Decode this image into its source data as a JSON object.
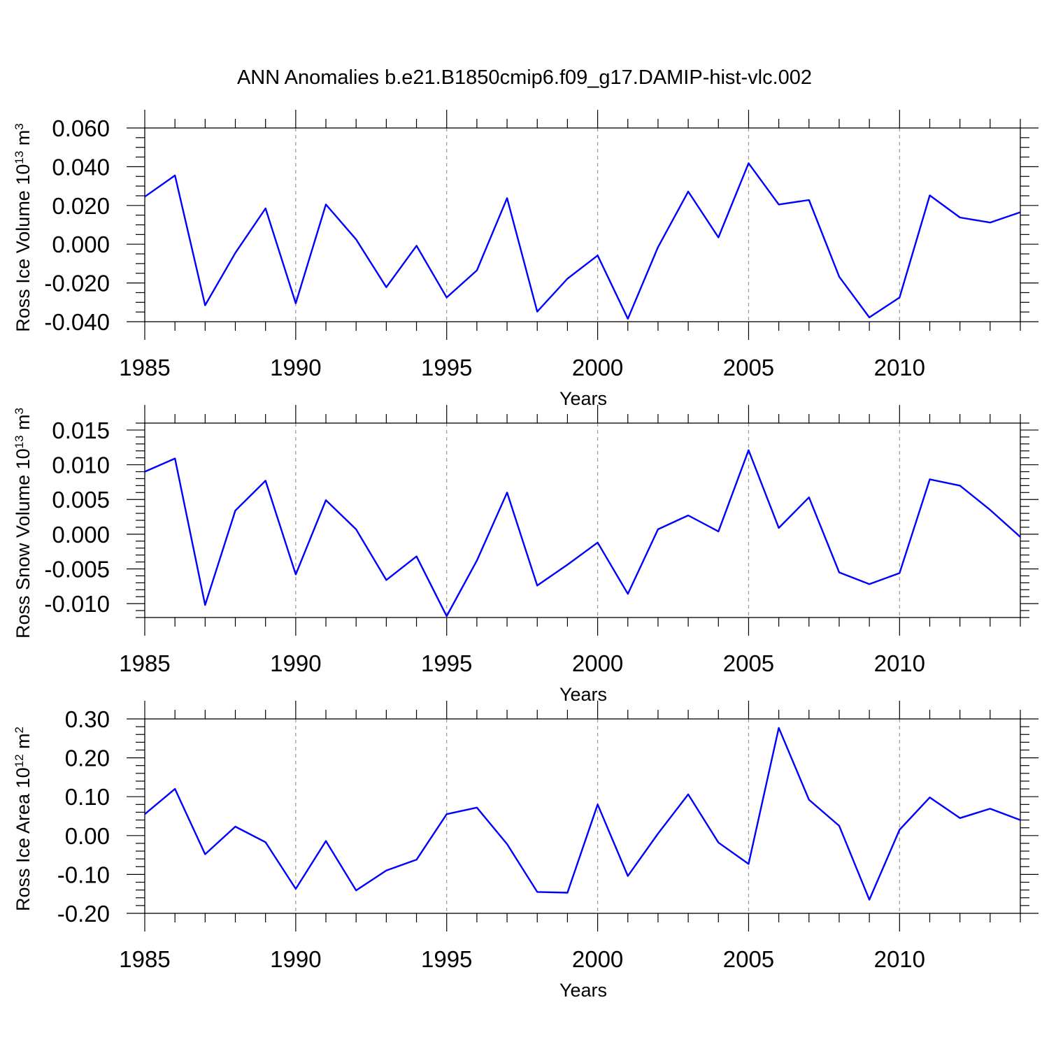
{
  "title": "ANN Anomalies b.e21.B1850cmip6.f09_g17.DAMIP-hist-vlc.002",
  "line_color": "#0000ff",
  "chart_data": [
    {
      "type": "line",
      "title": "",
      "xlabel": "Years",
      "ylabel": {
        "main": "Ross Ice Volume 10",
        "sup": "13",
        "unit": " m",
        "unit_sup": "3"
      },
      "x": [
        1985,
        1986,
        1987,
        1988,
        1989,
        1990,
        1991,
        1992,
        1993,
        1994,
        1995,
        1996,
        1997,
        1998,
        1999,
        2000,
        2001,
        2002,
        2003,
        2004,
        2005,
        2006,
        2007,
        2008,
        2009,
        2010,
        2011,
        2012,
        2013,
        2014
      ],
      "values": [
        0.0245,
        0.0355,
        -0.0315,
        -0.0045,
        0.0185,
        -0.0305,
        0.0205,
        0.0025,
        -0.0222,
        -0.0008,
        -0.0275,
        -0.0135,
        0.0238,
        -0.0348,
        -0.0178,
        -0.0058,
        -0.0385,
        -0.0015,
        0.0272,
        0.0035,
        0.0418,
        0.0205,
        0.0228,
        -0.0168,
        -0.0378,
        -0.0275,
        0.0252,
        0.0138,
        0.0112,
        0.0165
      ],
      "xlim": [
        1985,
        2014
      ],
      "ylim": [
        -0.04,
        0.06
      ],
      "xticks": [
        1985,
        1990,
        1995,
        2000,
        2005,
        2010
      ],
      "xtick_labels": [
        "1985",
        "1990",
        "1995",
        "2000",
        "2005",
        "2010"
      ],
      "yticks": [
        -0.04,
        -0.02,
        0.0,
        0.02,
        0.04,
        0.06
      ],
      "ytick_labels": [
        "-0.040",
        "-0.020",
        "0.000",
        "0.020",
        "0.040",
        "0.060"
      ],
      "yminor": 0.005,
      "grid": "vertical dashed at major x ticks"
    },
    {
      "type": "line",
      "title": "",
      "xlabel": "Years",
      "ylabel": {
        "main": "Ross Snow Volume 10",
        "sup": "13",
        "unit": " m",
        "unit_sup": "3"
      },
      "x": [
        1985,
        1986,
        1987,
        1988,
        1989,
        1990,
        1991,
        1992,
        1993,
        1994,
        1995,
        1996,
        1997,
        1998,
        1999,
        2000,
        2001,
        2002,
        2003,
        2004,
        2005,
        2006,
        2007,
        2008,
        2009,
        2010,
        2011,
        2012,
        2013,
        2014
      ],
      "values": [
        0.009,
        0.0109,
        -0.0102,
        0.0034,
        0.0077,
        -0.0058,
        0.0049,
        0.0007,
        -0.0066,
        -0.0032,
        -0.0118,
        -0.0038,
        0.006,
        -0.0074,
        -0.0044,
        -0.0012,
        -0.0086,
        0.0007,
        0.0027,
        0.0004,
        0.0121,
        0.0009,
        0.0053,
        -0.0055,
        -0.0072,
        -0.0056,
        0.0079,
        0.007,
        0.0035,
        -0.0004
      ],
      "xlim": [
        1985,
        2014
      ],
      "ylim": [
        -0.012,
        0.016
      ],
      "xticks": [
        1985,
        1990,
        1995,
        2000,
        2005,
        2010
      ],
      "xtick_labels": [
        "1985",
        "1990",
        "1995",
        "2000",
        "2005",
        "2010"
      ],
      "yticks": [
        -0.01,
        -0.005,
        0.0,
        0.005,
        0.01,
        0.015
      ],
      "ytick_labels": [
        "-0.010",
        "-0.005",
        "0.000",
        "0.005",
        "0.010",
        "0.015"
      ],
      "yminor": 0.001,
      "grid": "vertical dashed at major x ticks"
    },
    {
      "type": "line",
      "title": "",
      "xlabel": "Years",
      "ylabel": {
        "main": "Ross Ice Area 10",
        "sup": "12",
        "unit": " m",
        "unit_sup": "2"
      },
      "x": [
        1985,
        1986,
        1987,
        1988,
        1989,
        1990,
        1991,
        1992,
        1993,
        1994,
        1995,
        1996,
        1997,
        1998,
        1999,
        2000,
        2001,
        2002,
        2003,
        2004,
        2005,
        2006,
        2007,
        2008,
        2009,
        2010,
        2011,
        2012,
        2013,
        2014
      ],
      "values": [
        0.055,
        0.12,
        -0.048,
        0.023,
        -0.017,
        -0.137,
        -0.014,
        -0.141,
        -0.09,
        -0.062,
        0.055,
        0.072,
        -0.022,
        -0.145,
        -0.147,
        0.08,
        -0.104,
        0.005,
        0.106,
        -0.018,
        -0.073,
        0.277,
        0.092,
        0.025,
        -0.165,
        0.015,
        0.098,
        0.045,
        0.069,
        0.04
      ],
      "xlim": [
        1985,
        2014
      ],
      "ylim": [
        -0.2,
        0.3
      ],
      "xticks": [
        1985,
        1990,
        1995,
        2000,
        2005,
        2010
      ],
      "xtick_labels": [
        "1985",
        "1990",
        "1995",
        "2000",
        "2005",
        "2010"
      ],
      "yticks": [
        -0.2,
        -0.1,
        0.0,
        0.1,
        0.2,
        0.3
      ],
      "ytick_labels": [
        "-0.20",
        "-0.10",
        "0.00",
        "0.10",
        "0.20",
        "0.30"
      ],
      "yminor": 0.02,
      "grid": "vertical dashed at major x ticks"
    }
  ]
}
